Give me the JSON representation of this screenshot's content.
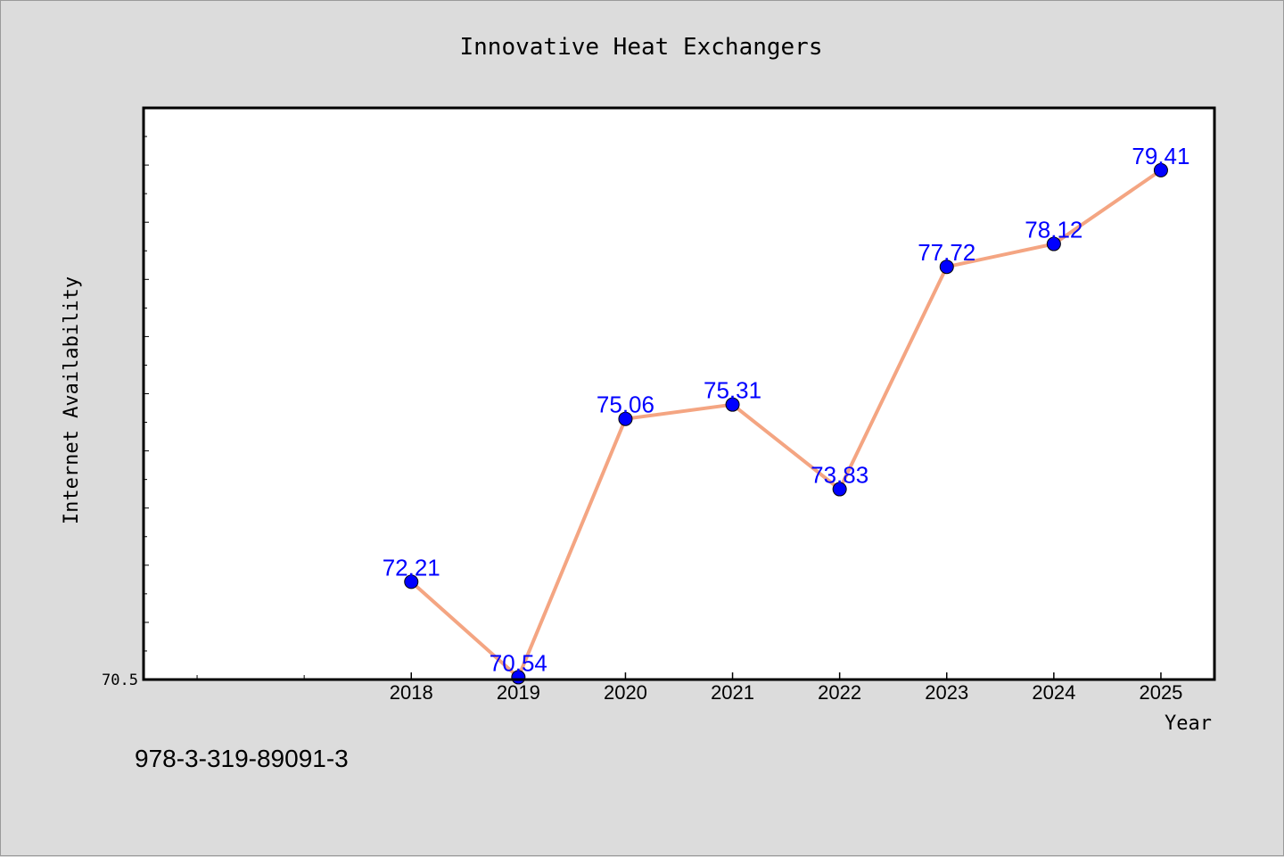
{
  "chart_data": {
    "type": "line",
    "title": "Innovative Heat Exchangers",
    "xlabel": "Year",
    "ylabel": "Internet Availability",
    "x": [
      2018,
      2019,
      2020,
      2021,
      2022,
      2023,
      2024,
      2025
    ],
    "series": [
      {
        "values": [
          72.21,
          70.54,
          75.06,
          75.31,
          73.83,
          77.72,
          78.12,
          79.41
        ],
        "labels": [
          "72.21",
          "70.54",
          "75.06",
          "75.31",
          "73.83",
          "77.72",
          "78.12",
          "79.41"
        ]
      }
    ],
    "ylim": [
      70.5,
      80.5
    ],
    "xlim": [
      2015.5,
      2025.5
    ],
    "ytick_labels": [
      "70.5"
    ],
    "y_minor_tick_step": 0.5,
    "x_minor_ticks": [
      2016,
      2017
    ],
    "grid": false,
    "colors": {
      "line": "#f4a582",
      "marker": "#0000ff",
      "data_label": "#0000ff",
      "plot_background": "#ffffff",
      "figure_background": "#dcdcdc"
    }
  },
  "footnote": "978-3-319-89091-3"
}
